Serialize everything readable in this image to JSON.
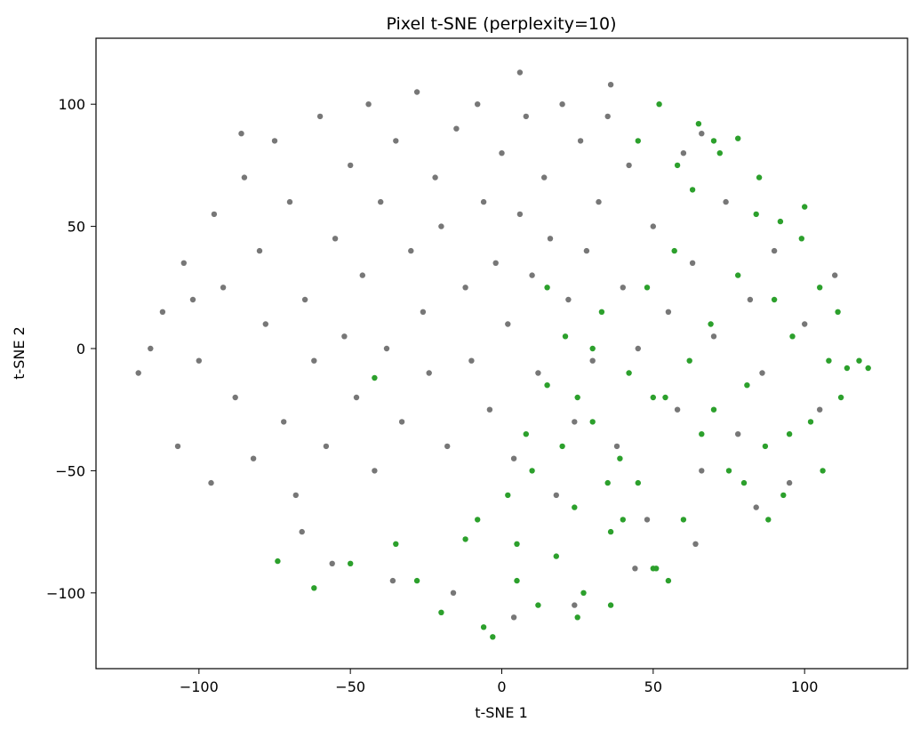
{
  "chart_data": {
    "type": "scatter",
    "title": "Pixel t-SNE (perplexity=10)",
    "xlabel": "t-SNE 1",
    "ylabel": "t-SNE 2",
    "xlim": [
      -134,
      134
    ],
    "ylim": [
      -131,
      127
    ],
    "x_ticks": [
      -100,
      -50,
      0,
      50,
      100
    ],
    "y_ticks": [
      -100,
      -50,
      0,
      50,
      100
    ],
    "x_tick_labels": [
      "−100",
      "−50",
      "0",
      "50",
      "100"
    ],
    "y_tick_labels": [
      "−100",
      "−50",
      "0",
      "50",
      "100"
    ],
    "grid": false,
    "legend": "none",
    "colors": {
      "gray": "#777777",
      "green": "#2ca02c"
    },
    "series": [
      {
        "color_key": "gray",
        "points": [
          [
            -120,
            -10
          ],
          [
            -112,
            15
          ],
          [
            -105,
            35
          ],
          [
            -100,
            -5
          ],
          [
            -95,
            55
          ],
          [
            -92,
            25
          ],
          [
            -88,
            -20
          ],
          [
            -85,
            70
          ],
          [
            -82,
            -45
          ],
          [
            -80,
            40
          ],
          [
            -78,
            10
          ],
          [
            -75,
            85
          ],
          [
            -72,
            -30
          ],
          [
            -70,
            60
          ],
          [
            -68,
            -60
          ],
          [
            -65,
            20
          ],
          [
            -62,
            -5
          ],
          [
            -60,
            95
          ],
          [
            -58,
            -40
          ],
          [
            -55,
            45
          ],
          [
            -52,
            5
          ],
          [
            -50,
            75
          ],
          [
            -48,
            -20
          ],
          [
            -46,
            30
          ],
          [
            -44,
            100
          ],
          [
            -42,
            -50
          ],
          [
            -40,
            60
          ],
          [
            -38,
            0
          ],
          [
            -35,
            85
          ],
          [
            -33,
            -30
          ],
          [
            -30,
            40
          ],
          [
            -28,
            105
          ],
          [
            -26,
            15
          ],
          [
            -24,
            -10
          ],
          [
            -22,
            70
          ],
          [
            -20,
            50
          ],
          [
            -18,
            -40
          ],
          [
            -15,
            90
          ],
          [
            -12,
            25
          ],
          [
            -10,
            -5
          ],
          [
            -8,
            100
          ],
          [
            -6,
            60
          ],
          [
            -4,
            -25
          ],
          [
            -2,
            35
          ],
          [
            0,
            80
          ],
          [
            2,
            10
          ],
          [
            4,
            -45
          ],
          [
            6,
            55
          ],
          [
            8,
            95
          ],
          [
            10,
            30
          ],
          [
            12,
            -10
          ],
          [
            14,
            70
          ],
          [
            16,
            45
          ],
          [
            18,
            -60
          ],
          [
            20,
            100
          ],
          [
            22,
            20
          ],
          [
            24,
            -30
          ],
          [
            26,
            85
          ],
          [
            28,
            40
          ],
          [
            30,
            -5
          ],
          [
            32,
            60
          ],
          [
            35,
            95
          ],
          [
            38,
            -40
          ],
          [
            40,
            25
          ],
          [
            42,
            75
          ],
          [
            45,
            0
          ],
          [
            48,
            -70
          ],
          [
            50,
            50
          ],
          [
            55,
            15
          ],
          [
            58,
            -25
          ],
          [
            60,
            80
          ],
          [
            63,
            35
          ],
          [
            66,
            -50
          ],
          [
            70,
            5
          ],
          [
            74,
            60
          ],
          [
            78,
            -35
          ],
          [
            82,
            20
          ],
          [
            86,
            -10
          ],
          [
            90,
            40
          ],
          [
            95,
            -55
          ],
          [
            100,
            10
          ],
          [
            105,
            -25
          ],
          [
            110,
            30
          ],
          [
            -107,
            -40
          ],
          [
            -96,
            -55
          ],
          [
            -86,
            88
          ],
          [
            -66,
            -75
          ],
          [
            -56,
            -88
          ],
          [
            -36,
            -95
          ],
          [
            -16,
            -100
          ],
          [
            4,
            -110
          ],
          [
            24,
            -105
          ],
          [
            44,
            -90
          ],
          [
            64,
            -80
          ],
          [
            84,
            -65
          ],
          [
            6,
            113
          ],
          [
            36,
            108
          ],
          [
            66,
            88
          ],
          [
            -116,
            0
          ],
          [
            -102,
            20
          ]
        ]
      },
      {
        "color_key": "green",
        "points": [
          [
            -74,
            -87
          ],
          [
            -62,
            -98
          ],
          [
            -50,
            -88
          ],
          [
            -42,
            -12
          ],
          [
            -35,
            -80
          ],
          [
            -28,
            -95
          ],
          [
            -20,
            -108
          ],
          [
            -12,
            -78
          ],
          [
            -6,
            -114
          ],
          [
            -3,
            -118
          ],
          [
            2,
            -60
          ],
          [
            5,
            -95
          ],
          [
            8,
            -35
          ],
          [
            12,
            -105
          ],
          [
            15,
            -15
          ],
          [
            18,
            -85
          ],
          [
            21,
            5
          ],
          [
            24,
            -65
          ],
          [
            27,
            -100
          ],
          [
            30,
            -30
          ],
          [
            33,
            15
          ],
          [
            36,
            -75
          ],
          [
            39,
            -45
          ],
          [
            42,
            -10
          ],
          [
            45,
            -55
          ],
          [
            48,
            25
          ],
          [
            51,
            -90
          ],
          [
            54,
            -20
          ],
          [
            57,
            40
          ],
          [
            60,
            -70
          ],
          [
            63,
            65
          ],
          [
            66,
            -35
          ],
          [
            69,
            10
          ],
          [
            72,
            80
          ],
          [
            75,
            -50
          ],
          [
            78,
            30
          ],
          [
            81,
            -15
          ],
          [
            84,
            55
          ],
          [
            87,
            -40
          ],
          [
            90,
            20
          ],
          [
            93,
            -60
          ],
          [
            96,
            5
          ],
          [
            99,
            45
          ],
          [
            102,
            -30
          ],
          [
            105,
            25
          ],
          [
            108,
            -5
          ],
          [
            111,
            15
          ],
          [
            114,
            -8
          ],
          [
            118,
            -5
          ],
          [
            121,
            -8
          ],
          [
            45,
            85
          ],
          [
            52,
            100
          ],
          [
            58,
            75
          ],
          [
            65,
            92
          ],
          [
            70,
            85
          ],
          [
            78,
            86
          ],
          [
            85,
            70
          ],
          [
            92,
            52
          ],
          [
            100,
            58
          ],
          [
            55,
            -95
          ],
          [
            40,
            -70
          ],
          [
            35,
            -55
          ],
          [
            20,
            -40
          ],
          [
            10,
            -50
          ],
          [
            25,
            -20
          ],
          [
            30,
            0
          ],
          [
            15,
            25
          ],
          [
            50,
            -20
          ],
          [
            62,
            -5
          ],
          [
            70,
            -25
          ],
          [
            80,
            -55
          ],
          [
            88,
            -70
          ],
          [
            95,
            -35
          ],
          [
            106,
            -50
          ],
          [
            112,
            -20
          ],
          [
            50,
            -90
          ],
          [
            36,
            -105
          ],
          [
            25,
            -110
          ],
          [
            5,
            -80
          ],
          [
            -8,
            -70
          ]
        ]
      }
    ]
  }
}
